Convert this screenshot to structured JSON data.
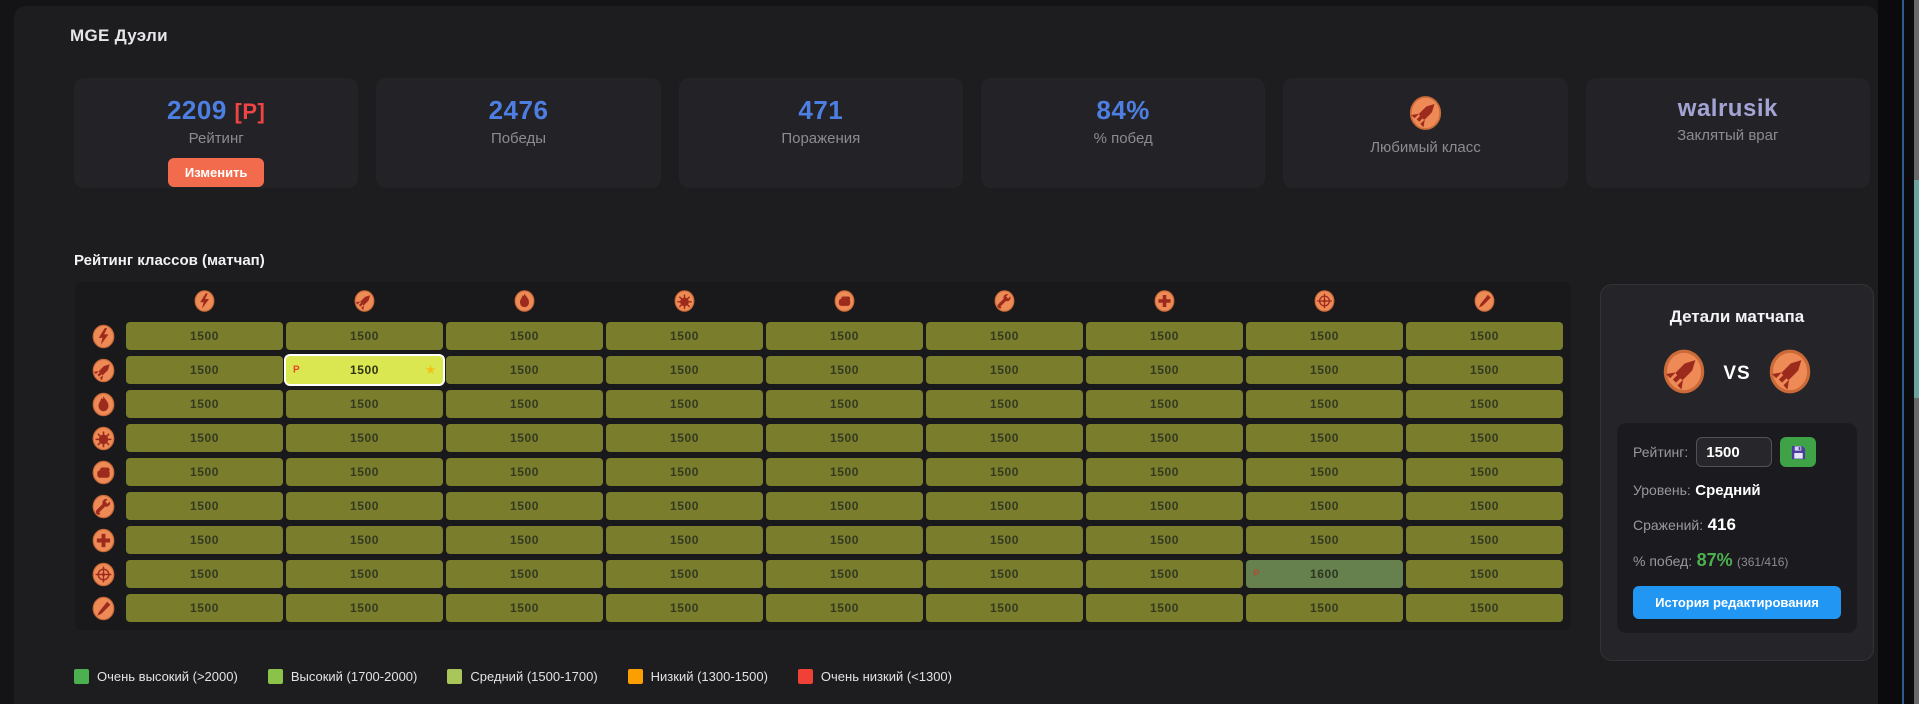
{
  "page": {
    "title": "MGE Дуэли"
  },
  "colors": {
    "accent_blue": "#4d7fe3",
    "accent_red": "#ef4444",
    "accent_lavender": "#a3a4d4",
    "button_orange": "#f26b4d",
    "button_blue": "#2196f3",
    "button_green": "#3fa246",
    "winrate_green": "#4caf50",
    "cell_default": "#797d2c",
    "cell_selected": "#dbe751",
    "cell_edited": "#67814e"
  },
  "stats_cards": [
    {
      "id": "rating",
      "value": "2209",
      "value_suffix": "[P]",
      "label": "Рейтинг",
      "button": "Изменить",
      "accent": "blue"
    },
    {
      "id": "wins",
      "value": "2476",
      "label": "Победы",
      "accent": "blue"
    },
    {
      "id": "losses",
      "value": "471",
      "label": "Поражения",
      "accent": "blue"
    },
    {
      "id": "winrate",
      "value": "84%",
      "label": "% побед",
      "accent": "blue"
    },
    {
      "id": "favorite-class",
      "icon": "soldier",
      "label": "Любимый класс"
    },
    {
      "id": "nemesis",
      "value": "walrusik",
      "label": "Заклятый враг",
      "accent": "lavender"
    }
  ],
  "matchup_table": {
    "heading": "Рейтинг классов (матчап)",
    "classes": [
      "scout",
      "soldier",
      "pyro",
      "demoman",
      "heavy",
      "engineer",
      "medic",
      "sniper",
      "spy"
    ],
    "values": [
      [
        "1500",
        "1500",
        "1500",
        "1500",
        "1500",
        "1500",
        "1500",
        "1500",
        "1500"
      ],
      [
        "1500",
        "1500",
        "1500",
        "1500",
        "1500",
        "1500",
        "1500",
        "1500",
        "1500"
      ],
      [
        "1500",
        "1500",
        "1500",
        "1500",
        "1500",
        "1500",
        "1500",
        "1500",
        "1500"
      ],
      [
        "1500",
        "1500",
        "1500",
        "1500",
        "1500",
        "1500",
        "1500",
        "1500",
        "1500"
      ],
      [
        "1500",
        "1500",
        "1500",
        "1500",
        "1500",
        "1500",
        "1500",
        "1500",
        "1500"
      ],
      [
        "1500",
        "1500",
        "1500",
        "1500",
        "1500",
        "1500",
        "1500",
        "1500",
        "1500"
      ],
      [
        "1500",
        "1500",
        "1500",
        "1500",
        "1500",
        "1500",
        "1500",
        "1500",
        "1500"
      ],
      [
        "1500",
        "1500",
        "1500",
        "1500",
        "1500",
        "1500",
        "1500",
        "1600",
        "1500"
      ],
      [
        "1500",
        "1500",
        "1500",
        "1500",
        "1500",
        "1500",
        "1500",
        "1500",
        "1500"
      ]
    ],
    "selected_cell": {
      "row": 1,
      "col": 1,
      "marker": "P",
      "star": "★"
    },
    "edited_cells": [
      {
        "row": 7,
        "col": 7,
        "marker": "P"
      }
    ]
  },
  "legend": [
    {
      "label": "Очень высокий (>2000)",
      "color": "#4caf50"
    },
    {
      "label": "Высокий (1700-2000)",
      "color": "#8bc34a"
    },
    {
      "label": "Средний (1500-1700)",
      "color": "#a9c65b"
    },
    {
      "label": "Низкий (1300-1500)",
      "color": "#fb9e00"
    },
    {
      "label": "Очень низкий (<1300)",
      "color": "#ef4136"
    }
  ],
  "details_panel": {
    "title": "Детали матчапа",
    "left_class": "soldier",
    "right_class": "soldier",
    "vs_label": "VS",
    "rating_label": "Рейтинг:",
    "rating_value": "1500",
    "level_label": "Уровень:",
    "level_value": "Средний",
    "battles_label": "Сражений:",
    "battles_value": "416",
    "winrate_label": "% побед:",
    "winrate_value": "87%",
    "winrate_detail": "(361/416)",
    "history_button": "История редактирования"
  }
}
